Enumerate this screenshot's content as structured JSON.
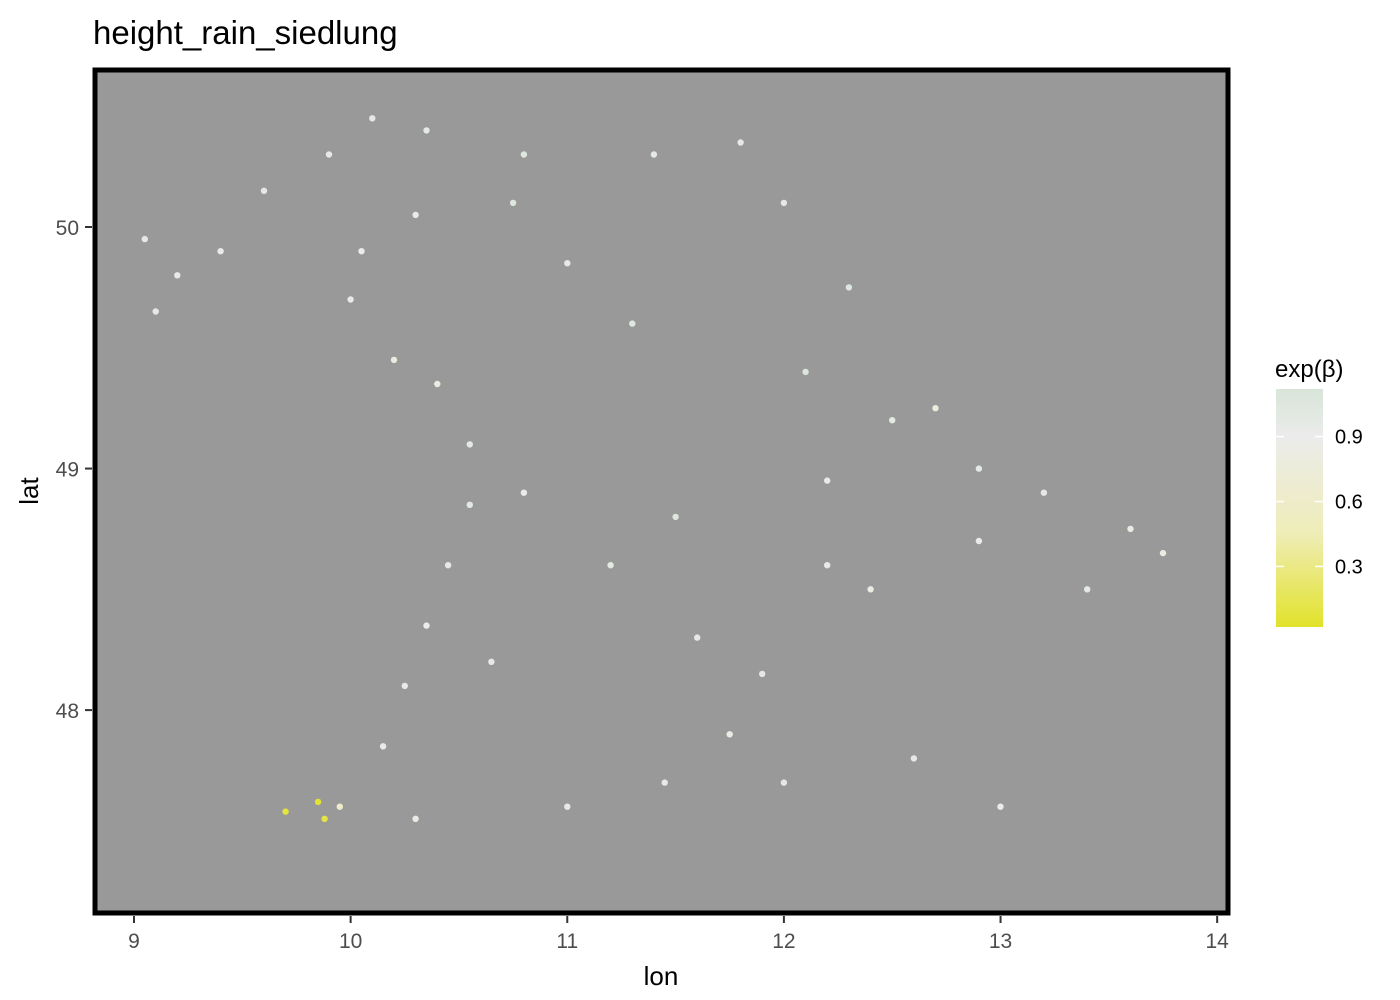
{
  "chart_data": {
    "type": "scatter",
    "title": "height_rain_siedlung",
    "xlabel": "lon",
    "ylabel": "lat",
    "xlim": [
      8.82,
      14.05
    ],
    "ylim": [
      47.16,
      50.65
    ],
    "xticks": [
      "9",
      "10",
      "11",
      "12",
      "13",
      "14"
    ],
    "yticks": [
      "48",
      "49",
      "50"
    ],
    "panel_background": "#999999",
    "grid": false,
    "legend": {
      "title": "exp(β)",
      "placement": "right",
      "ticks": [
        "0.3",
        "0.6",
        "0.9"
      ],
      "range": [
        0.02,
        1.12
      ],
      "gradient_colors": [
        "#e2e22b",
        "#efedb9",
        "#ebebeb",
        "#d8e5d8"
      ]
    },
    "series": [
      {
        "values_described": "dense point cloud covering Bavaria with exp(β) mostly between 0.8 and 1.1",
        "points": [
          [
            9.05,
            49.95,
            0.97
          ],
          [
            9.2,
            49.8,
            0.96
          ],
          [
            9.1,
            49.65,
            0.97
          ],
          [
            9.4,
            49.9,
            0.95
          ],
          [
            9.6,
            50.15,
            0.97
          ],
          [
            9.9,
            50.3,
            0.96
          ],
          [
            10.1,
            50.45,
            0.97
          ],
          [
            10.35,
            50.4,
            0.98
          ],
          [
            10.05,
            49.9,
            0.88
          ],
          [
            10.3,
            50.05,
            0.85
          ],
          [
            10.0,
            49.7,
            0.95
          ],
          [
            10.2,
            49.45,
            0.8
          ],
          [
            10.4,
            49.35,
            0.82
          ],
          [
            10.55,
            49.1,
            0.97
          ],
          [
            10.55,
            48.85,
            0.99
          ],
          [
            10.45,
            48.6,
            0.97
          ],
          [
            10.35,
            48.35,
            0.9
          ],
          [
            10.25,
            48.1,
            0.95
          ],
          [
            10.15,
            47.85,
            0.92
          ],
          [
            10.3,
            47.55,
            0.85
          ],
          [
            9.85,
            47.62,
            0.05
          ],
          [
            9.7,
            47.58,
            0.08
          ],
          [
            9.88,
            47.55,
            0.1
          ],
          [
            9.95,
            47.6,
            0.6
          ],
          [
            10.8,
            50.3,
            1.05
          ],
          [
            10.75,
            50.1,
            1.06
          ],
          [
            11.0,
            49.85,
            0.98
          ],
          [
            11.3,
            49.6,
            1.02
          ],
          [
            11.4,
            50.3,
            0.97
          ],
          [
            11.8,
            50.35,
            0.97
          ],
          [
            12.0,
            50.1,
            0.98
          ],
          [
            12.3,
            49.75,
            1.05
          ],
          [
            12.1,
            49.4,
            1.07
          ],
          [
            12.5,
            49.2,
            0.98
          ],
          [
            12.7,
            49.25,
            0.75
          ],
          [
            12.9,
            49.0,
            0.97
          ],
          [
            12.2,
            48.95,
            0.96
          ],
          [
            11.5,
            48.8,
            1.06
          ],
          [
            11.2,
            48.6,
            1.0
          ],
          [
            11.6,
            48.3,
            0.97
          ],
          [
            11.9,
            48.15,
            0.97
          ],
          [
            11.75,
            47.9,
            0.85
          ],
          [
            11.45,
            47.7,
            0.96
          ],
          [
            11.0,
            47.6,
            0.97
          ],
          [
            12.4,
            48.5,
            0.82
          ],
          [
            12.9,
            48.7,
            0.88
          ],
          [
            13.2,
            48.9,
            0.97
          ],
          [
            13.4,
            48.5,
            0.99
          ],
          [
            13.6,
            48.75,
            0.85
          ],
          [
            13.75,
            48.65,
            0.82
          ],
          [
            13.0,
            47.6,
            0.9
          ],
          [
            12.6,
            47.8,
            0.97
          ],
          [
            12.2,
            48.6,
            0.96
          ],
          [
            12.0,
            47.7,
            0.97
          ],
          [
            10.8,
            48.9,
            0.9
          ],
          [
            10.65,
            48.2,
            0.96
          ]
        ]
      }
    ]
  }
}
